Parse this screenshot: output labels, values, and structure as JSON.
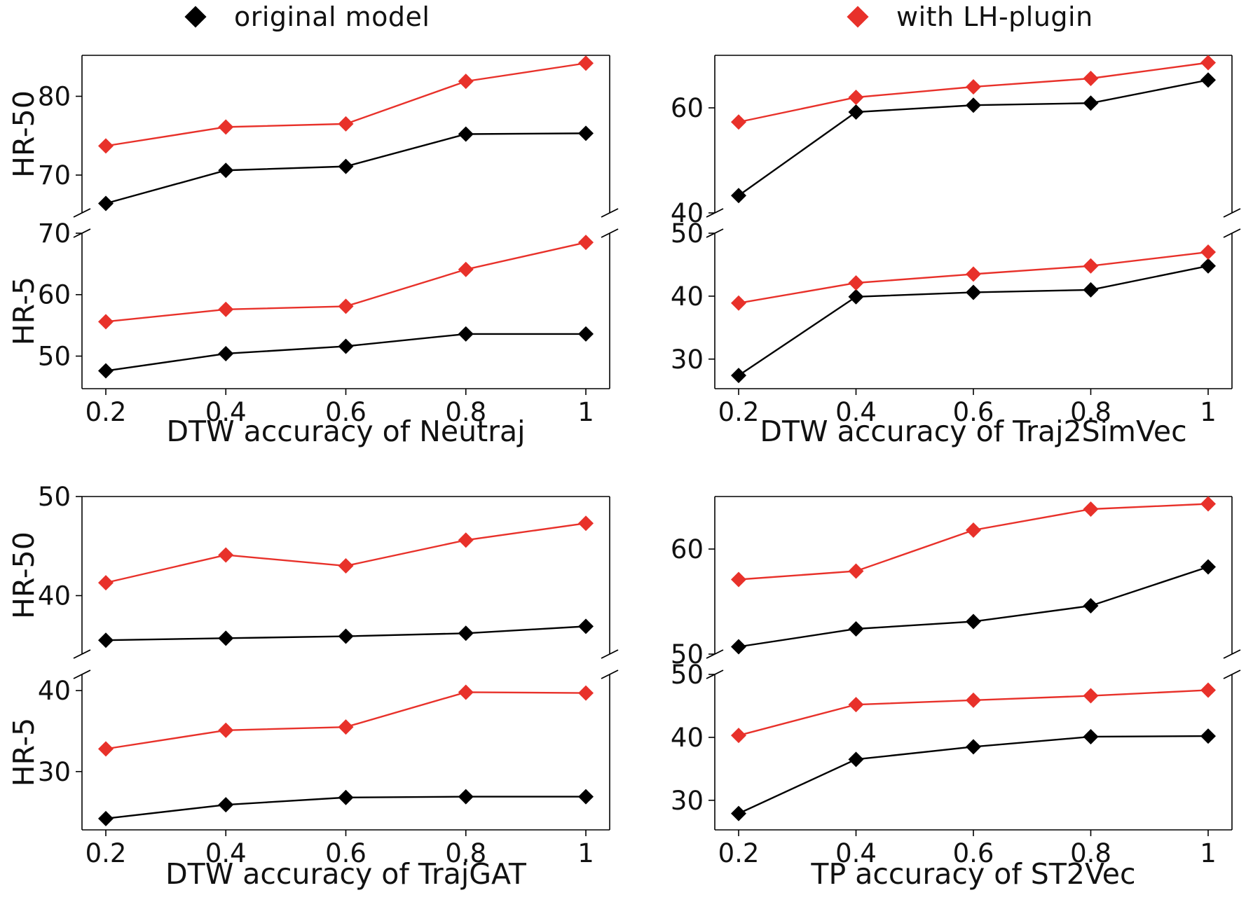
{
  "legend": {
    "original_label": "original model",
    "lh_label": "with LH-plugin",
    "original_color": "#000000",
    "lh_color": "#e8312a"
  },
  "chart_data": [
    {
      "type": "line",
      "xlabel": "DTW accuracy of Neutraj",
      "x": [
        0.2,
        0.4,
        0.6,
        0.8,
        1
      ],
      "xtick_labels": [
        "0.2",
        "0.4",
        "0.6",
        "0.8",
        "1"
      ],
      "top": {
        "ylabel": "HR-50",
        "ylim": [
          65.2,
          85.2
        ],
        "yticks": [
          70,
          80
        ],
        "ytick_labels": [
          "70",
          "80"
        ],
        "series": [
          {
            "name": "original model",
            "values": [
              66.4,
              70.6,
              71.1,
              75.2,
              75.3
            ]
          },
          {
            "name": "with LH-plugin",
            "values": [
              73.7,
              76.1,
              76.5,
              81.9,
              84.2
            ]
          }
        ]
      },
      "bottom": {
        "ylabel": "HR-5",
        "ylim": [
          44.7,
          70.0
        ],
        "yticks": [
          50,
          60,
          70
        ],
        "ytick_labels": [
          "50",
          "60",
          "70"
        ],
        "series": [
          {
            "name": "original model",
            "values": [
              47.6,
              50.4,
              51.6,
              53.6,
              53.6
            ]
          },
          {
            "name": "with LH-plugin",
            "values": [
              55.6,
              57.6,
              58.1,
              64.1,
              68.5
            ]
          }
        ]
      }
    },
    {
      "type": "line",
      "xlabel": "DTW accuracy of Traj2SimVec",
      "x": [
        0.2,
        0.4,
        0.6,
        0.8,
        1
      ],
      "xtick_labels": [
        "0.2",
        "0.4",
        "0.6",
        "0.8",
        "1"
      ],
      "top": {
        "ylabel": "",
        "ylim": [
          40,
          70
        ],
        "yticks": [
          40,
          60
        ],
        "ytick_labels": [
          "40",
          "60"
        ],
        "series": [
          {
            "name": "original model",
            "values": [
              43.3,
              59.2,
              60.5,
              60.9,
              65.3
            ]
          },
          {
            "name": "with LH-plugin",
            "values": [
              57.3,
              62.0,
              64.0,
              65.6,
              68.6
            ]
          }
        ]
      },
      "bottom": {
        "ylabel": "",
        "ylim": [
          25.3,
          50.0
        ],
        "yticks": [
          30,
          40,
          50
        ],
        "ytick_labels": [
          "30",
          "40",
          "50"
        ],
        "series": [
          {
            "name": "original model",
            "values": [
              27.4,
              39.9,
              40.6,
              41.0,
              44.8
            ]
          },
          {
            "name": "with LH-plugin",
            "values": [
              38.9,
              42.1,
              43.5,
              44.8,
              47.0
            ]
          }
        ]
      }
    },
    {
      "type": "line",
      "xlabel": "DTW accuracy of TrajGAT",
      "x": [
        0.2,
        0.4,
        0.6,
        0.8,
        1
      ],
      "xtick_labels": [
        "0.2",
        "0.4",
        "0.6",
        "0.8",
        "1"
      ],
      "top": {
        "ylabel": "HR-50",
        "ylim": [
          34.1,
          50.0
        ],
        "yticks": [
          40,
          50
        ],
        "ytick_labels": [
          "40",
          "50"
        ],
        "series": [
          {
            "name": "original model",
            "values": [
              35.5,
              35.7,
              35.9,
              36.2,
              36.9
            ]
          },
          {
            "name": "with LH-plugin",
            "values": [
              41.3,
              44.1,
              43.0,
              45.6,
              47.3
            ]
          }
        ]
      },
      "bottom": {
        "ylabel": "HR-5",
        "ylim": [
          22.8,
          42.0
        ],
        "yticks": [
          30,
          40
        ],
        "ytick_labels": [
          "30",
          "40"
        ],
        "series": [
          {
            "name": "original model",
            "values": [
              24.2,
              25.9,
              26.8,
              26.9,
              26.9
            ]
          },
          {
            "name": "with LH-plugin",
            "values": [
              32.8,
              35.1,
              35.5,
              39.8,
              39.7
            ]
          }
        ]
      }
    },
    {
      "type": "line",
      "xlabel": "TP accuracy of ST2Vec",
      "x": [
        0.2,
        0.4,
        0.6,
        0.8,
        1
      ],
      "xtick_labels": [
        "0.2",
        "0.4",
        "0.6",
        "0.8",
        "1"
      ],
      "top": {
        "ylabel": "",
        "ylim": [
          50,
          65
        ],
        "yticks": [
          50,
          60
        ],
        "ytick_labels": [
          "50",
          "60"
        ],
        "series": [
          {
            "name": "original model",
            "values": [
              50.7,
              52.4,
              53.1,
              54.6,
              58.3
            ]
          },
          {
            "name": "with LH-plugin",
            "values": [
              57.1,
              57.9,
              61.8,
              63.8,
              64.3
            ]
          }
        ]
      },
      "bottom": {
        "ylabel": "",
        "ylim": [
          25.3,
          50.0
        ],
        "yticks": [
          30,
          40,
          50
        ],
        "ytick_labels": [
          "30",
          "40",
          "50"
        ],
        "series": [
          {
            "name": "original model",
            "values": [
              27.9,
              36.5,
              38.5,
              40.1,
              40.2
            ]
          },
          {
            "name": "with LH-plugin",
            "values": [
              40.3,
              45.2,
              45.9,
              46.6,
              47.5
            ]
          }
        ]
      }
    }
  ]
}
